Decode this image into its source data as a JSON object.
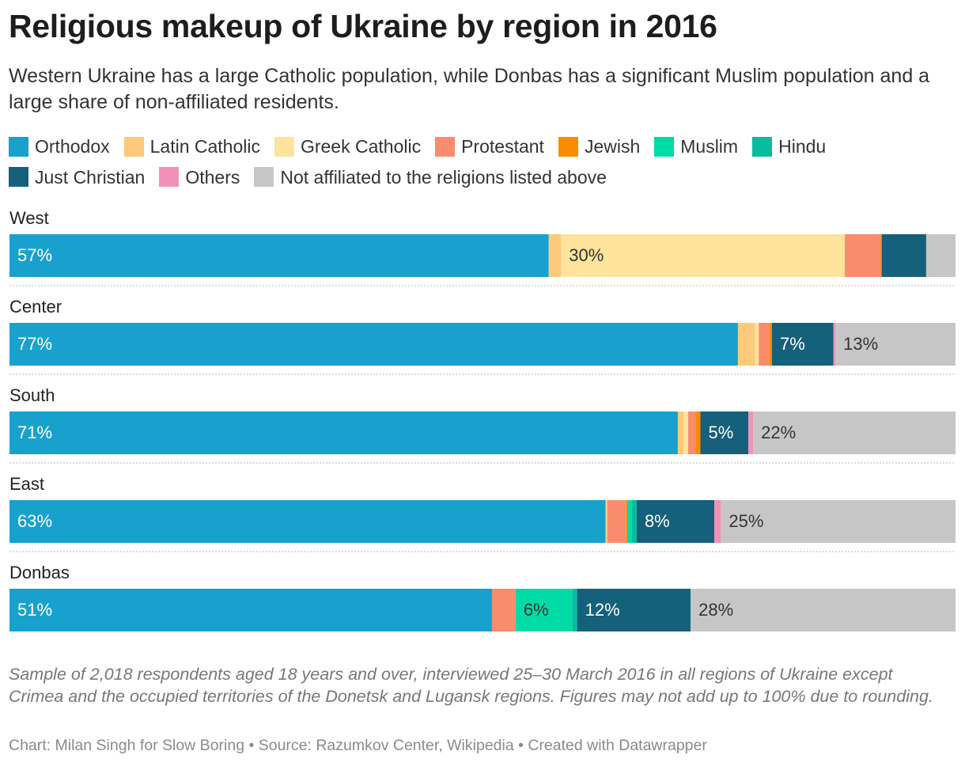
{
  "title": "Religious makeup of Ukraine by region in 2016",
  "subtitle": "Western Ukraine has a large Catholic population, while Donbas has a significant Muslim population and a large share of non-affiliated residents.",
  "notes": "Sample of 2,018 respondents aged 18 years and over, interviewed 25–30 March 2016 in all regions of Ukraine except Crimea and the occupied territories of the Donetsk and Lugansk regions. Figures may not add up to 100% due to rounding.",
  "footer": "Chart: Milan Singh for Slow Boring • Source: Razumkov Center, Wikipedia • Created with Datawrapper",
  "chart_data": {
    "type": "bar",
    "orientation": "horizontal",
    "stacked": true,
    "xlim": [
      0,
      100
    ],
    "legend_placement": "top",
    "categories": [
      "West",
      "Center",
      "South",
      "East",
      "Donbas"
    ],
    "series": [
      {
        "name": "Orthodox",
        "color": "#18a1cd",
        "values": [
          57,
          77,
          71,
          63,
          51
        ]
      },
      {
        "name": "Latin Catholic",
        "color": "#fdc97a",
        "values": [
          1.3,
          1.8,
          0.6,
          0.2,
          0
        ]
      },
      {
        "name": "Greek Catholic",
        "color": "#fde39c",
        "values": [
          30,
          0.4,
          0.5,
          0,
          0
        ]
      },
      {
        "name": "Protestant",
        "color": "#fa8c6e",
        "values": [
          3.8,
          1.1,
          0.8,
          2,
          2.5
        ]
      },
      {
        "name": "Jewish",
        "color": "#fa8c00",
        "values": [
          0.1,
          0.3,
          0.5,
          0.1,
          0
        ]
      },
      {
        "name": "Muslim",
        "color": "#00dca6",
        "values": [
          0,
          0,
          0,
          0.5,
          6
        ]
      },
      {
        "name": "Hindu",
        "color": "#09bb9f",
        "values": [
          0,
          0,
          0,
          0.5,
          0.5
        ]
      },
      {
        "name": "Just Christian",
        "color": "#15607a",
        "values": [
          4.7,
          6.5,
          5.1,
          8.2,
          12
        ]
      },
      {
        "name": "Others",
        "color": "#f390b8",
        "values": [
          0,
          0.2,
          0.5,
          0.7,
          0
        ]
      },
      {
        "name": "Not affiliated to the religions listed above",
        "color": "#c6c6c6",
        "values": [
          3.1,
          12.7,
          21.5,
          24.8,
          28
        ]
      }
    ],
    "labels": [
      [
        {
          "series": "Orthodox",
          "text": "57%"
        },
        {
          "series": "Greek Catholic",
          "text": "30%"
        }
      ],
      [
        {
          "series": "Orthodox",
          "text": "77%"
        },
        {
          "series": "Just Christian",
          "text": "7%"
        },
        {
          "series": "Not affiliated to the religions listed above",
          "text": "13%"
        }
      ],
      [
        {
          "series": "Orthodox",
          "text": "71%"
        },
        {
          "series": "Just Christian",
          "text": "5%"
        },
        {
          "series": "Not affiliated to the religions listed above",
          "text": "22%"
        }
      ],
      [
        {
          "series": "Orthodox",
          "text": "63%"
        },
        {
          "series": "Just Christian",
          "text": "8%"
        },
        {
          "series": "Not affiliated to the religions listed above",
          "text": "25%"
        }
      ],
      [
        {
          "series": "Orthodox",
          "text": "51%"
        },
        {
          "series": "Muslim",
          "text": "6%"
        },
        {
          "series": "Just Christian",
          "text": "12%"
        },
        {
          "series": "Not affiliated to the religions listed above",
          "text": "28%"
        }
      ]
    ]
  }
}
